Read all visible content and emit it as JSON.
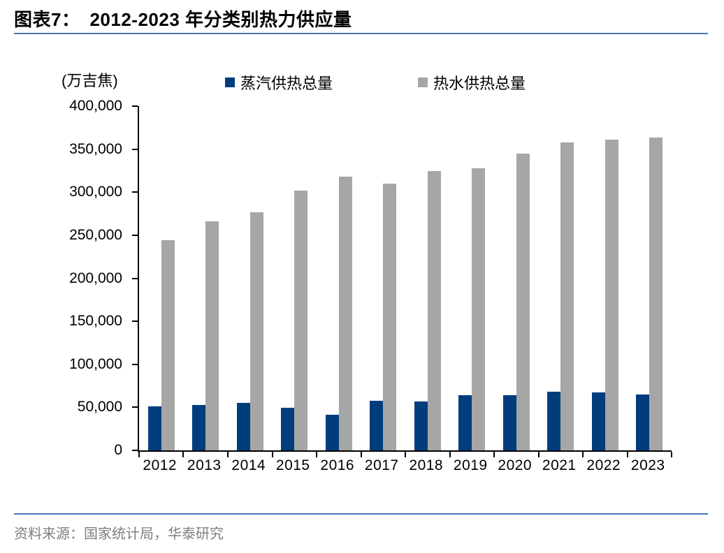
{
  "header": {
    "title_prefix": "图表7：",
    "title_text": "2012-2023 年分类别热力供应量"
  },
  "chart_data": {
    "type": "bar",
    "title": "2012-2023 年分类别热力供应量",
    "unit_label": "(万吉焦)",
    "categories": [
      "2012",
      "2013",
      "2014",
      "2015",
      "2016",
      "2017",
      "2018",
      "2019",
      "2020",
      "2021",
      "2022",
      "2023"
    ],
    "series": [
      {
        "name": "蒸汽供热总量",
        "color": "#003d7c",
        "values": [
          51000,
          53000,
          55500,
          49500,
          41500,
          57500,
          57000,
          64500,
          64500,
          68000,
          67000,
          65000
        ]
      },
      {
        "name": "热水供热总量",
        "color": "#a6a6a6",
        "values": [
          244000,
          266500,
          276500,
          301500,
          318000,
          310000,
          324500,
          327500,
          345000,
          358000,
          361000,
          363500
        ]
      }
    ],
    "ylim": [
      0,
      400000
    ],
    "ytick_step": 50000,
    "ytick_labels": [
      "0",
      "50,000",
      "100,000",
      "150,000",
      "200,000",
      "250,000",
      "300,000",
      "350,000",
      "400,000"
    ],
    "grid": false,
    "legend_position": "top"
  },
  "footer": {
    "source": "资料来源：国家统计局，华泰研究"
  },
  "colors": {
    "rule": "#4677b4",
    "axis": "#000000",
    "source_text": "#7f7f7f",
    "title_text": "#000000"
  }
}
